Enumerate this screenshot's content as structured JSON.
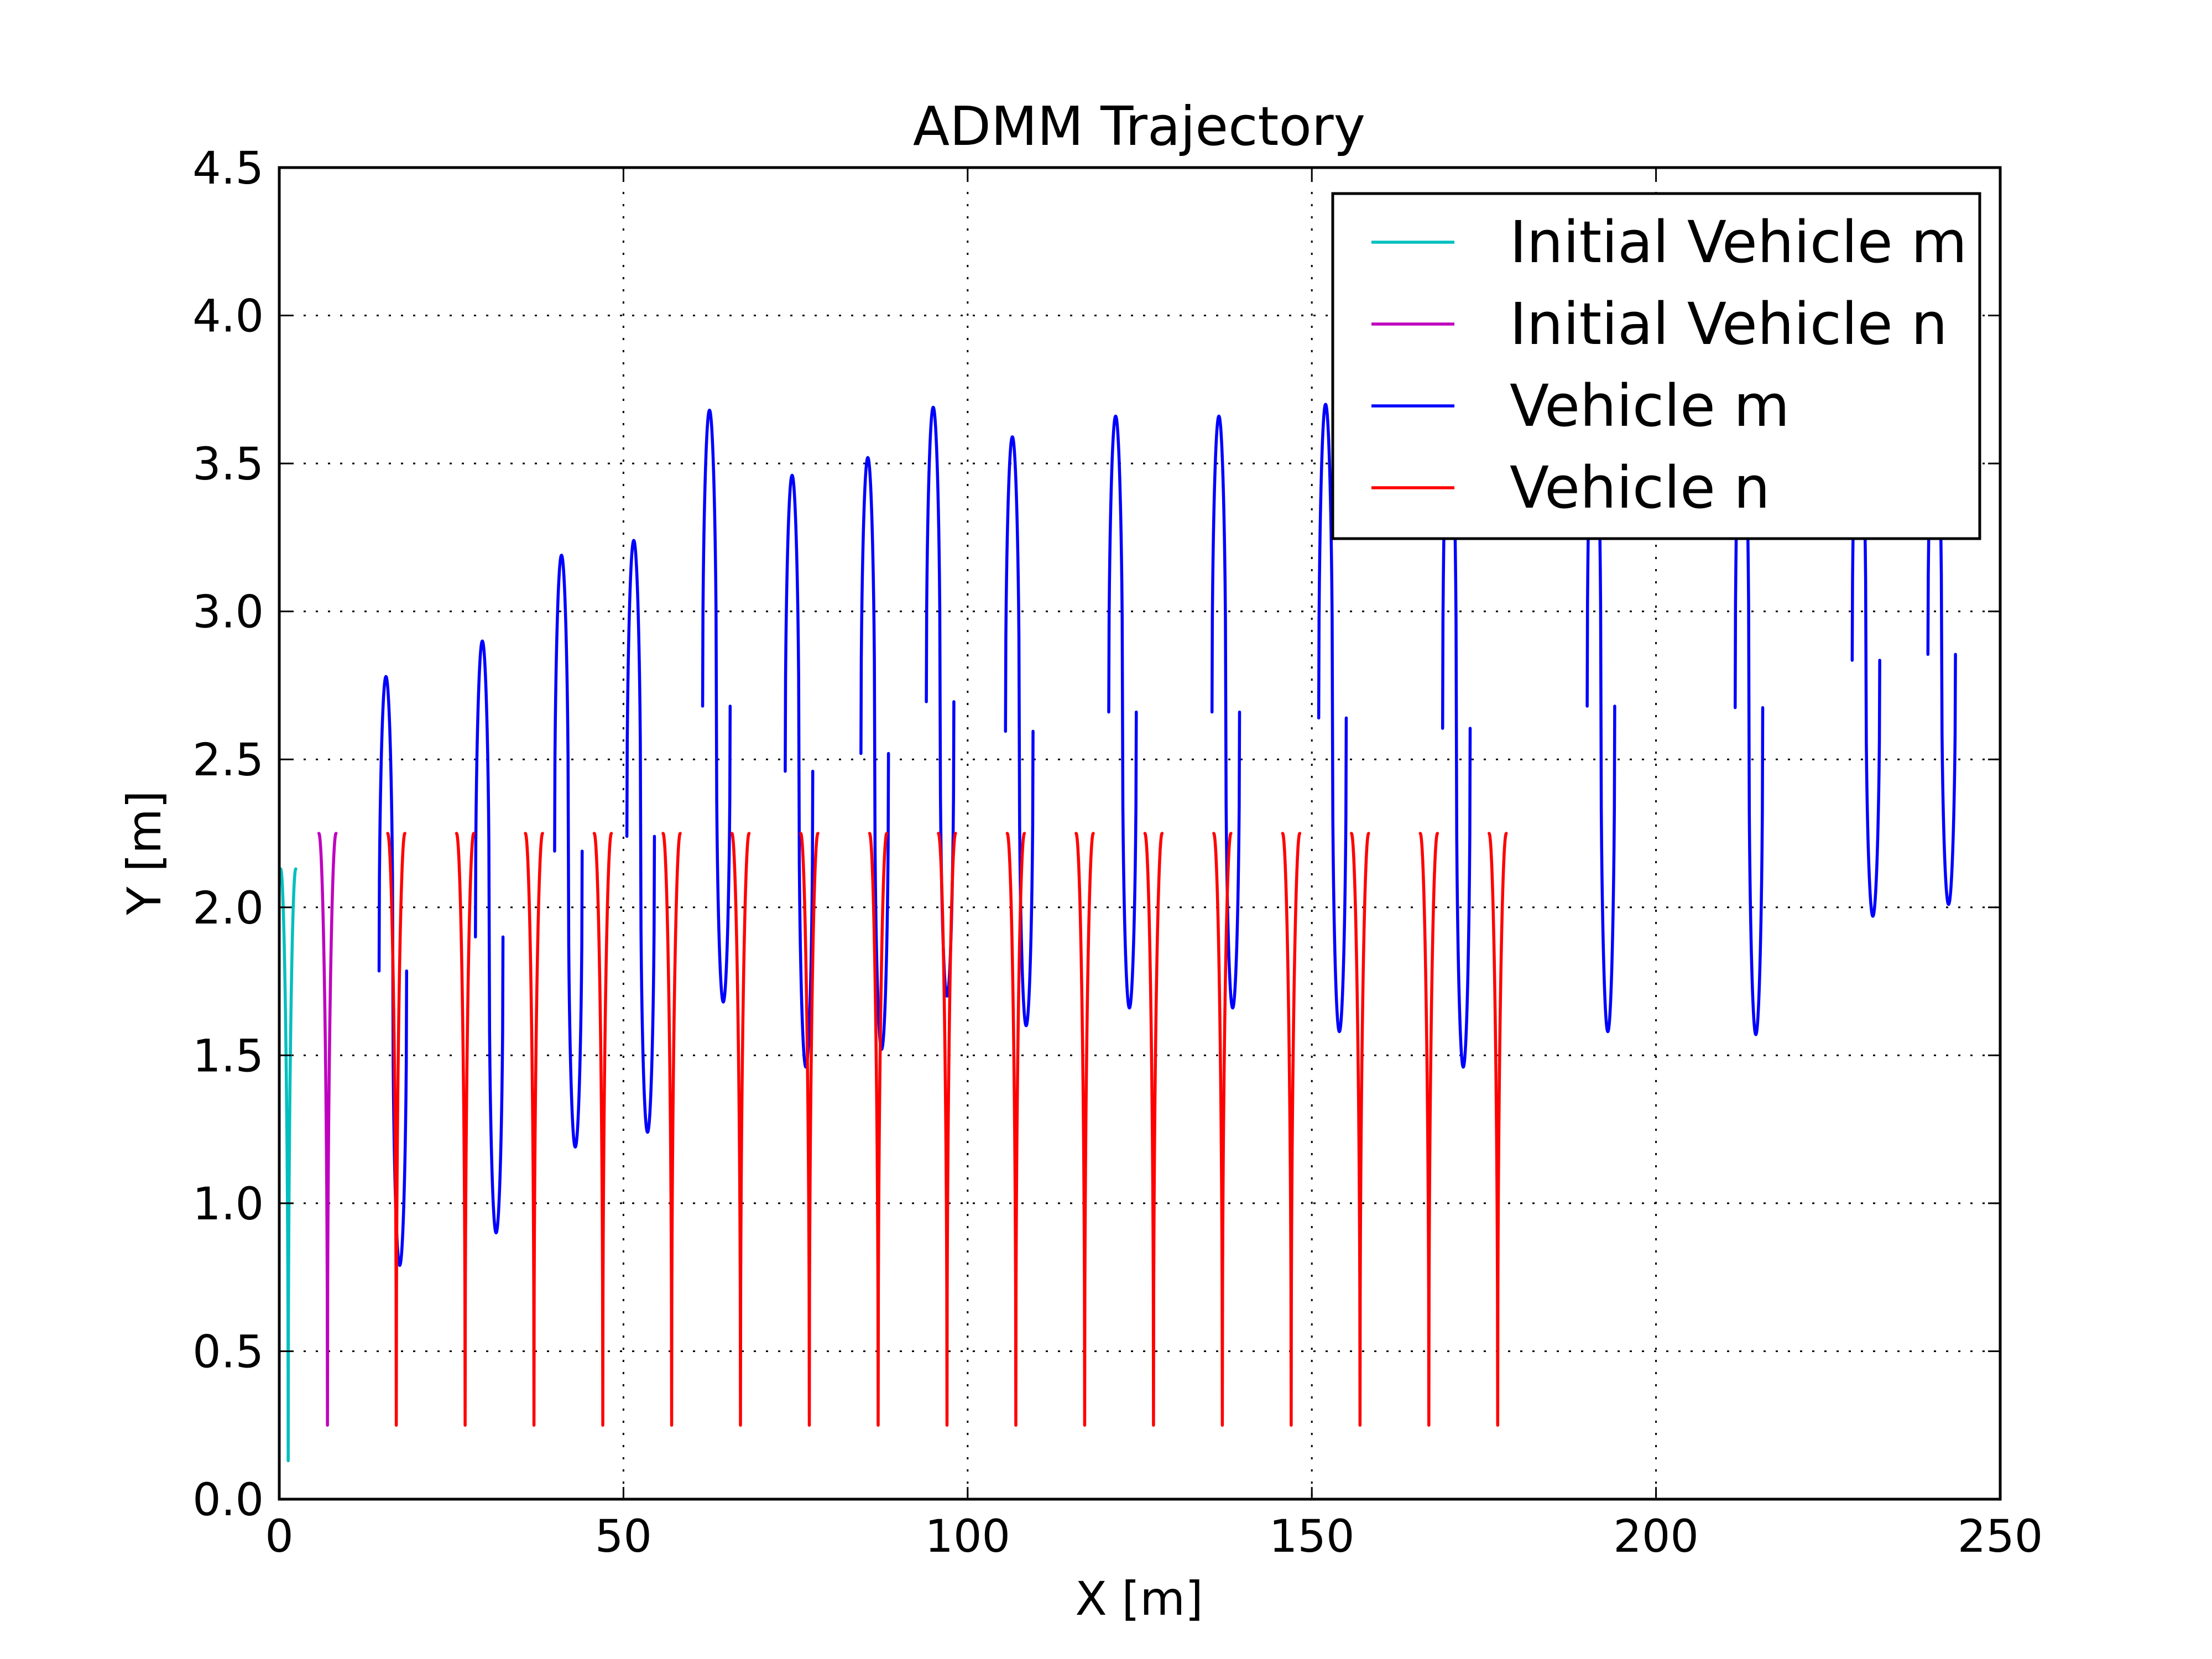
{
  "chart_data": {
    "type": "line",
    "title": "ADMM Trajectory",
    "xlabel": "X [m]",
    "ylabel": "Y [m]",
    "xlim": [
      0,
      250
    ],
    "ylim": [
      0,
      4.5
    ],
    "x_ticks": [
      "0",
      "50",
      "100",
      "150",
      "200",
      "250"
    ],
    "y_ticks": [
      "0.0",
      "0.5",
      "1.0",
      "1.5",
      "2.0",
      "2.5",
      "3.0",
      "3.5",
      "4.0",
      "4.5"
    ],
    "x_tick_values": [
      0,
      50,
      100,
      150,
      200,
      250
    ],
    "y_tick_values": [
      0,
      0.5,
      1.0,
      1.5,
      2.0,
      2.5,
      3.0,
      3.5,
      4.0,
      4.5
    ],
    "grid": true,
    "legend_position": "top-right",
    "series": [
      {
        "name": "Initial Vehicle m",
        "color": "#00bfbf",
        "x": [
          0.3,
          1.3,
          2.3,
          3.3,
          0.3
        ],
        "y": [
          2.1,
          2.13,
          0.13,
          2.13,
          2.1
        ]
      },
      {
        "name": "Initial Vehicle n",
        "color": "#bf00bf",
        "x": [
          7.0
        ],
        "y": [
          2.25
        ],
        "oscillation": {
          "centers": [
            7.0
          ],
          "top": 2.25,
          "bottom": 0.25
        }
      },
      {
        "name": "Vehicle m",
        "color": "#0000ff",
        "peaks": [
          {
            "x": 16.5,
            "y": 2.78
          },
          {
            "x": 30.5,
            "y": 2.9
          },
          {
            "x": 42.0,
            "y": 3.19
          },
          {
            "x": 52.5,
            "y": 3.24
          },
          {
            "x": 63.5,
            "y": 3.68
          },
          {
            "x": 75.5,
            "y": 3.46
          },
          {
            "x": 86.5,
            "y": 3.52
          },
          {
            "x": 96.0,
            "y": 3.69
          },
          {
            "x": 107.5,
            "y": 3.59
          },
          {
            "x": 122.5,
            "y": 3.66
          },
          {
            "x": 137.5,
            "y": 3.66
          },
          {
            "x": 153.0,
            "y": 3.7
          },
          {
            "x": 171.0,
            "y": 3.75
          },
          {
            "x": 192.0,
            "y": 3.78
          },
          {
            "x": 213.5,
            "y": 3.78
          },
          {
            "x": 230.5,
            "y": 3.7
          },
          {
            "x": 241.5,
            "y": 3.7
          }
        ],
        "troughs": [
          {
            "x": 16.5,
            "y": 0.79
          },
          {
            "x": 30.5,
            "y": 0.9
          },
          {
            "x": 42.5,
            "y": 1.19
          },
          {
            "x": 52.5,
            "y": 1.24
          },
          {
            "x": 63.5,
            "y": 1.68
          },
          {
            "x": 75.5,
            "y": 1.46
          },
          {
            "x": 86.5,
            "y": 1.52
          },
          {
            "x": 96.0,
            "y": 1.7
          },
          {
            "x": 107.5,
            "y": 1.6
          },
          {
            "x": 122.5,
            "y": 1.66
          },
          {
            "x": 137.5,
            "y": 1.66
          },
          {
            "x": 153.0,
            "y": 1.58
          },
          {
            "x": 171.0,
            "y": 1.46
          },
          {
            "x": 192.0,
            "y": 1.58
          },
          {
            "x": 213.5,
            "y": 1.57
          },
          {
            "x": 230.5,
            "y": 1.97
          },
          {
            "x": 241.5,
            "y": 2.01
          }
        ]
      },
      {
        "name": "Vehicle n",
        "color": "#ff0000",
        "oscillation": {
          "centers": [
            17,
            27,
            37,
            47,
            57,
            67,
            77,
            87,
            97,
            107,
            117,
            127,
            137,
            147,
            157,
            167,
            177
          ],
          "top": 2.25,
          "bottom": 0.25
        }
      }
    ]
  }
}
